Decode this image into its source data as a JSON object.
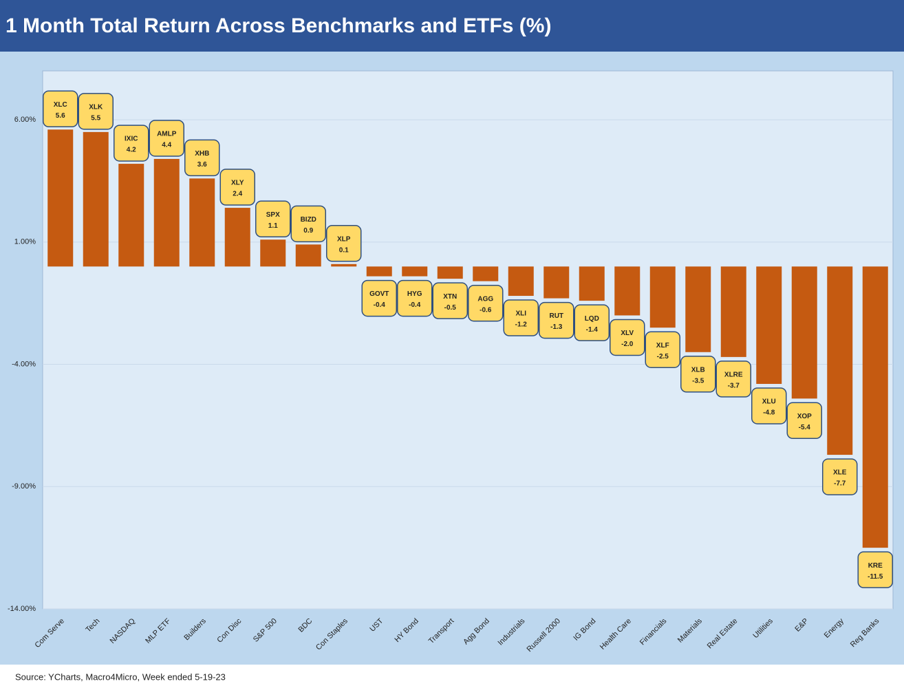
{
  "chart_data": {
    "type": "bar",
    "title": "1 Month Total Return Across Benchmarks and ETFs (%)",
    "source": "Source: YCharts, Macro4Micro, Week ended 5-19-23",
    "categories": [
      "Com Serve",
      "Tech",
      "NASDAQ",
      "MLP ETF",
      "Builders",
      "Con Disc",
      "S&P 500",
      "BDC",
      "Con Staples",
      "UST",
      "HY Bond",
      "Transport",
      "Agg Bond",
      "Industrials",
      "Russell 2000",
      "IG Bond",
      "Health Care",
      "Financials",
      "Materials",
      "Real Estate",
      "Utilities",
      "E&P",
      "Energy",
      "Reg Banks"
    ],
    "tickers": [
      "XLC",
      "XLK",
      "IXIC",
      "AMLP",
      "XHB",
      "XLY",
      "SPX",
      "BIZD",
      "XLP",
      "GOVT",
      "HYG",
      "XTN",
      "AGG",
      "XLI",
      "RUT",
      "LQD",
      "XLV",
      "XLF",
      "XLB",
      "XLRE",
      "XLU",
      "XOP",
      "XLE",
      "KRE"
    ],
    "values": [
      5.6,
      5.5,
      4.2,
      4.4,
      3.6,
      2.4,
      1.1,
      0.9,
      0.1,
      -0.4,
      -0.4,
      -0.5,
      -0.6,
      -1.2,
      -1.3,
      -1.4,
      -2.0,
      -2.5,
      -3.5,
      -3.7,
      -4.8,
      -5.4,
      -7.7,
      -11.5
    ],
    "value_labels": [
      "5.6",
      "5.5",
      "4.2",
      "4.4",
      "3.6",
      "2.4",
      "1.1",
      "0.9",
      "0.1",
      "-0.4",
      "-0.4",
      "-0.5",
      "-0.6",
      "-1.2",
      "-1.3",
      "-1.4",
      "-2.0",
      "-2.5",
      "-3.5",
      "-3.7",
      "-4.8",
      "-5.4",
      "-7.7",
      "-11.5"
    ],
    "color": "#c55a11",
    "ylim": [
      -14,
      8
    ],
    "yticks": [
      {
        "value": 6,
        "label": "6.00%"
      },
      {
        "value": 1,
        "label": "1.00%"
      },
      {
        "value": -4,
        "label": "-4.00%"
      },
      {
        "value": -9,
        "label": "-9.00%"
      },
      {
        "value": -14,
        "label": "-14.00%"
      }
    ],
    "grid": true
  }
}
